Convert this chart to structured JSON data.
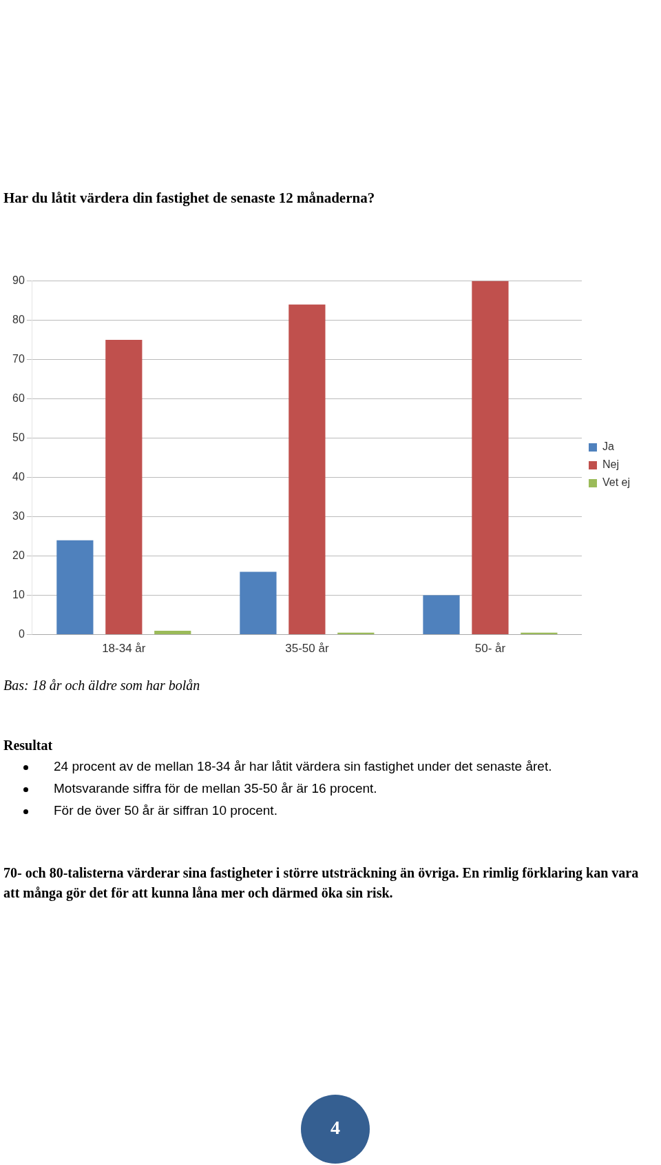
{
  "chart_data": {
    "type": "bar",
    "title": "Har du låtit värdera din fastighet de senaste 12 månaderna?",
    "categories": [
      "18-34 år",
      "35-50 år",
      "50- år"
    ],
    "series": [
      {
        "name": "Ja",
        "color": "#4f81bd",
        "values": [
          24,
          16,
          10
        ]
      },
      {
        "name": "Nej",
        "color": "#c0504d",
        "values": [
          75,
          84,
          90
        ]
      },
      {
        "name": "Vet ej",
        "color": "#9bbb59",
        "values": [
          1,
          0.5,
          0.5
        ]
      }
    ],
    "ylim": [
      0,
      90
    ],
    "yticks": [
      0,
      10,
      20,
      30,
      40,
      50,
      60,
      70,
      80,
      90
    ],
    "grid": "y",
    "legend": "right",
    "annotations": [
      "Bas: 18 år och äldre som har bolån",
      "Resultat",
      "24 procent av de mellan 18-34 år har låtit värdera sin fastighet under det senaste året.",
      "Motsvarande siffra för de mellan 35-50 år är 16 procent.",
      "För de över 50 år är siffran 10 procent.",
      "70- och 80-talisterna värderar sina fastigheter i större utsträckning än övriga. En rimlig förklaring kan vara att många gör det för att kunna låna mer och därmed öka sin risk.",
      "4"
    ]
  }
}
